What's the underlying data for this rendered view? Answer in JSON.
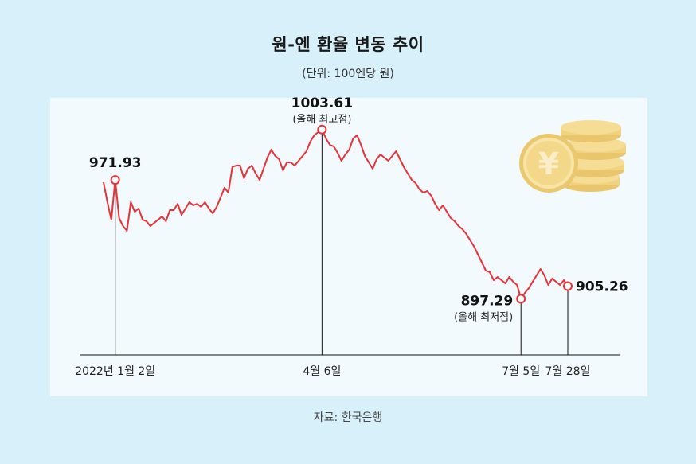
{
  "title": "원-엔 환율 변동 추이",
  "subtitle": "(단위: 100엔당 원)",
  "source": "자료: 한국은행",
  "colors": {
    "line": "#e8323a",
    "background": "#d8f0f9",
    "panel": "#f3fafd",
    "coin": "#f2d98c"
  },
  "icons": [
    "yen-coin-icon"
  ],
  "chart_data": {
    "type": "line",
    "title": "원-엔 환율 변동 추이",
    "ylabel": "100엔당 원",
    "ylim": [
      870,
      1020
    ],
    "x_ticks": [
      {
        "index": 3,
        "label": "2022년 1월 2일"
      },
      {
        "index": 56,
        "label": "4월 6일"
      },
      {
        "index": 107,
        "label": "7월 5일"
      },
      {
        "index": 119,
        "label": "7월 28일"
      }
    ],
    "annotations": [
      {
        "index": 3,
        "value": "971.93",
        "note": ""
      },
      {
        "index": 56,
        "value": "1003.61",
        "note": "(올해 최고점)"
      },
      {
        "index": 107,
        "value": "897.29",
        "note": "(올해 최저점)"
      },
      {
        "index": 119,
        "value": "905.26",
        "note": ""
      }
    ],
    "series": [
      {
        "name": "원-엔 환율",
        "values": [
          970.5,
          958.0,
          947.0,
          971.93,
          948.0,
          943.0,
          940.0,
          958.0,
          952.0,
          954.0,
          947.0,
          946.0,
          943.0,
          945.0,
          947.0,
          949.0,
          946.0,
          953.0,
          953.0,
          957.0,
          950.0,
          954.0,
          958.0,
          956.0,
          957.0,
          955.0,
          958.0,
          954.0,
          951.0,
          955.0,
          961.0,
          967.0,
          964.0,
          980.0,
          981.0,
          981.0,
          973.0,
          979.0,
          981.0,
          976.0,
          972.0,
          979.0,
          986.0,
          991.0,
          987.0,
          985.0,
          978.0,
          983.0,
          983.0,
          981.0,
          984.0,
          987.0,
          990.0,
          996.0,
          1000.0,
          1002.0,
          1003.61,
          998.0,
          994.0,
          993.0,
          989.0,
          984.0,
          988.0,
          991.0,
          998.0,
          1000.0,
          994.0,
          987.0,
          983.0,
          979.0,
          985.0,
          988.0,
          986.0,
          984.0,
          987.0,
          990.0,
          985.0,
          980.0,
          976.0,
          972.0,
          970.0,
          966.0,
          964.0,
          965.0,
          962.0,
          957.0,
          953.0,
          956.0,
          952.0,
          948.0,
          946.0,
          943.0,
          941.0,
          938.0,
          934.0,
          930.0,
          925.0,
          920.0,
          915.0,
          914.0,
          909.0,
          911.0,
          909.0,
          907.0,
          911.0,
          908.0,
          906.0,
          897.29,
          901.0,
          904.0,
          908.0,
          912.0,
          916.0,
          912.0,
          906.0,
          910.0,
          908.0,
          906.0,
          909.0,
          905.26
        ]
      }
    ]
  }
}
